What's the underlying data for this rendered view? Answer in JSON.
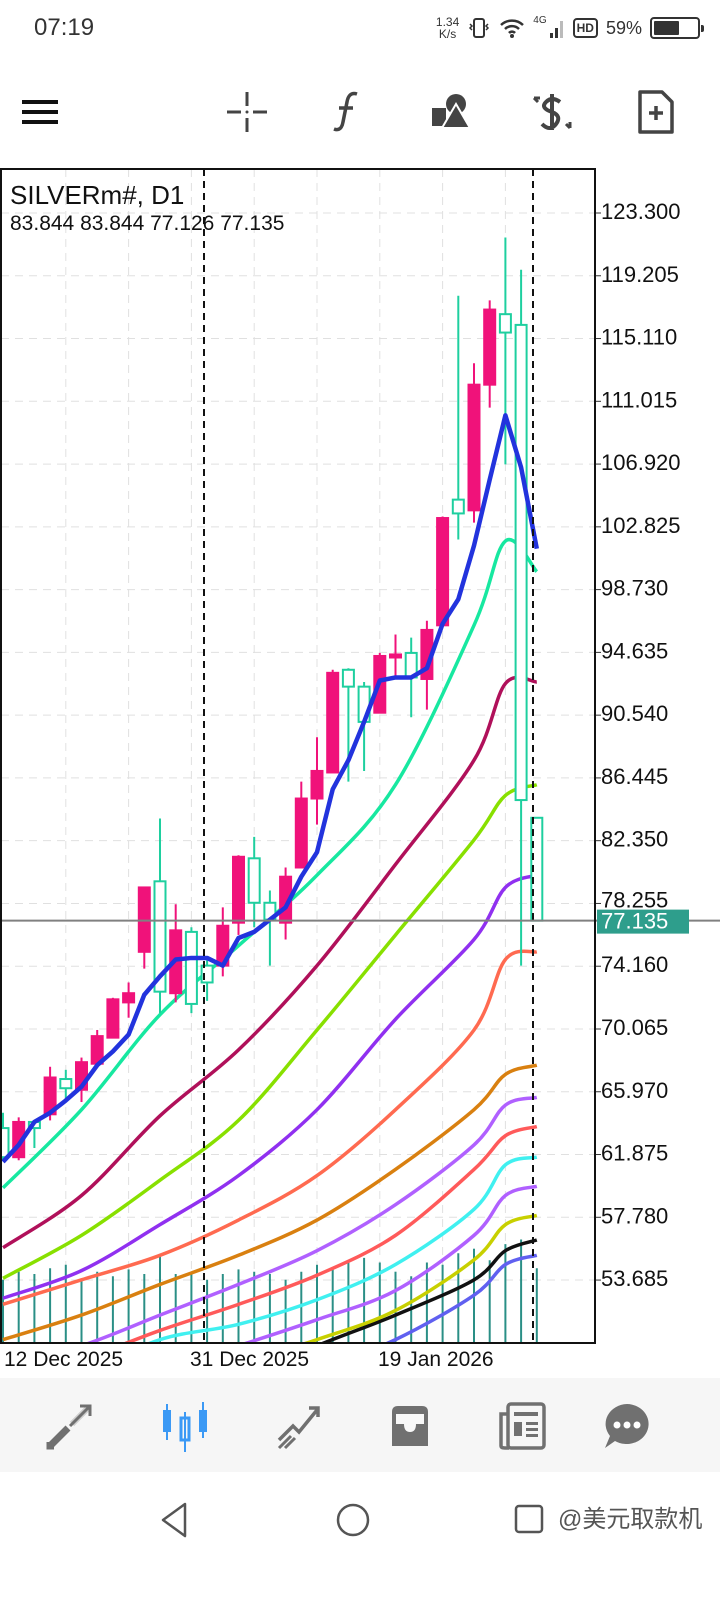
{
  "status_bar": {
    "time": "07:19",
    "speed_value": "1.34",
    "speed_unit": "K/s",
    "network": "4G",
    "hd": "HD",
    "battery": "59%",
    "battery_level": 0.59
  },
  "toolbar": {
    "icons": [
      "menu-icon",
      "crosshair-icon",
      "function-icon",
      "objects-icon",
      "trade-icon",
      "new-order-icon"
    ]
  },
  "chart": {
    "symbol": "SILVERm#, D1",
    "ohlc_text": "83.844 83.844 77.126 77.135",
    "current_price": "77.135",
    "colors": {
      "bull": "#f0127a",
      "bear": "#1ecf9f",
      "price_line": "#808080",
      "price_label_bg": "#2e9e8c",
      "volume": "#2a8f86",
      "grid": "#e0e0e0"
    }
  },
  "chart_data": {
    "type": "candlestick",
    "price_axis_ticks": [
      "123.300",
      "119.205",
      "115.110",
      "111.015",
      "106.920",
      "102.825",
      "98.730",
      "94.635",
      "90.540",
      "86.445",
      "82.350",
      "78.255",
      "74.160",
      "70.065",
      "65.970",
      "61.875",
      "57.780",
      "53.685"
    ],
    "ylim": [
      53.685,
      123.3
    ],
    "date_labels": [
      "12 Dec 2025",
      "31 Dec 2025",
      "19 Jan 2026"
    ],
    "candles_ohlc": [
      [
        63.6,
        64.6,
        61.5,
        61.7
      ],
      [
        61.7,
        64.3,
        61.5,
        64.0
      ],
      [
        64.0,
        64.1,
        62.3,
        63.6
      ],
      [
        64.5,
        67.6,
        64.1,
        66.9
      ],
      [
        66.8,
        67.4,
        65.4,
        66.2
      ],
      [
        66.1,
        68.2,
        65.3,
        67.9
      ],
      [
        67.8,
        70.0,
        67.8,
        69.6
      ],
      [
        69.5,
        72.1,
        69.5,
        72.0
      ],
      [
        71.8,
        73.1,
        70.8,
        72.4
      ],
      [
        75.1,
        79.3,
        74.0,
        79.3
      ],
      [
        79.7,
        83.8,
        71.1,
        72.5
      ],
      [
        72.4,
        78.2,
        71.8,
        76.5
      ],
      [
        76.4,
        76.7,
        71.1,
        71.7
      ],
      [
        74.2,
        74.7,
        71.9,
        73.1
      ],
      [
        74.2,
        78.0,
        73.5,
        76.8
      ],
      [
        77.0,
        81.4,
        76.2,
        81.3
      ],
      [
        81.2,
        82.6,
        76.7,
        78.3
      ],
      [
        78.3,
        79.1,
        74.2,
        77.2
      ],
      [
        77.0,
        80.6,
        75.9,
        80.0
      ],
      [
        80.6,
        86.2,
        80.6,
        85.1
      ],
      [
        85.1,
        89.1,
        83.4,
        86.9
      ],
      [
        86.8,
        93.5,
        86.8,
        93.3
      ],
      [
        93.5,
        93.6,
        86.2,
        92.4
      ],
      [
        92.4,
        92.7,
        86.9,
        90.1
      ],
      [
        90.7,
        94.6,
        90.7,
        94.4
      ],
      [
        94.3,
        95.8,
        93.1,
        94.5
      ],
      [
        94.6,
        95.6,
        90.4,
        93.0
      ],
      [
        92.9,
        96.7,
        90.9,
        96.1
      ],
      [
        96.4,
        103.5,
        96.4,
        103.4
      ],
      [
        104.6,
        117.9,
        102.0,
        103.7
      ],
      [
        103.9,
        113.5,
        103.1,
        112.1
      ],
      [
        112.1,
        117.6,
        110.6,
        117.0
      ],
      [
        116.7,
        121.7,
        106.9,
        115.5
      ],
      [
        116.0,
        119.6,
        74.2,
        85.0
      ],
      [
        83.844,
        83.844,
        77.126,
        77.135
      ]
    ],
    "volume_relative": [
      0.55,
      0.62,
      0.6,
      0.65,
      0.68,
      0.55,
      0.62,
      0.58,
      0.64,
      0.6,
      0.75,
      0.6,
      0.62,
      0.55,
      0.6,
      0.64,
      0.62,
      0.6,
      0.55,
      0.62,
      0.68,
      0.66,
      0.7,
      0.74,
      0.7,
      0.62,
      0.58,
      0.7,
      0.68,
      0.78,
      0.82,
      0.72,
      0.86,
      0.9,
      0.65
    ],
    "fast_ma": {
      "color": "#2233dd",
      "values": [
        61.4,
        62.5,
        64.0,
        64.6,
        65.4,
        66.3,
        67.7,
        68.6,
        69.7,
        72.3,
        73.5,
        74.6,
        74.7,
        74.7,
        74.2,
        76.0,
        76.4,
        77.2,
        78.0,
        80.0,
        81.6,
        85.7,
        87.6,
        90.1,
        92.8,
        93.0,
        93.0,
        93.6,
        96.5,
        98.1,
        101.6,
        105.9,
        110.1,
        106.7,
        101.4
      ]
    },
    "moving_averages": [
      {
        "color": "#17e8a0",
        "values": [
          59.7,
          64.8,
          71.0,
          75.5,
          80.1,
          86.0,
          96.4,
          101.9,
          99.9
        ]
      },
      {
        "color": "#b0105a",
        "values": [
          55.8,
          59.2,
          64.4,
          68.7,
          74.2,
          80.8,
          87.6,
          92.6,
          92.7
        ]
      },
      {
        "color": "#88e000",
        "values": [
          53.8,
          56.6,
          60.2,
          64.1,
          70.0,
          76.2,
          82.4,
          85.3,
          86.0
        ]
      },
      {
        "color": "#9030f0",
        "values": [
          52.5,
          54.3,
          57.3,
          60.5,
          64.8,
          70.7,
          75.9,
          79.3,
          80.1
        ]
      },
      {
        "color": "#ff6a50",
        "values": [
          52.1,
          53.7,
          55.3,
          57.6,
          60.5,
          64.8,
          70.0,
          74.6,
          75.1
        ]
      },
      {
        "color": "#d98010",
        "values": [
          49.8,
          51.4,
          53.4,
          55.3,
          57.6,
          60.9,
          64.8,
          67.1,
          67.7
        ]
      },
      {
        "color": "#b060ff",
        "values": [
          48.1,
          49.4,
          51.4,
          53.4,
          55.6,
          58.6,
          62.5,
          65.1,
          65.6
        ]
      },
      {
        "color": "#ff5a5a",
        "values": [
          47.2,
          48.5,
          50.4,
          52.1,
          54.0,
          56.6,
          60.9,
          63.1,
          63.7
        ]
      },
      {
        "color": "#40f0f0",
        "values": [
          45.9,
          47.5,
          49.8,
          50.8,
          52.4,
          54.7,
          58.3,
          61.2,
          61.7
        ]
      },
      {
        "color": "#b060ff",
        "values": [
          44.6,
          46.2,
          47.8,
          49.4,
          51.1,
          53.0,
          56.6,
          59.2,
          59.8
        ]
      },
      {
        "color": "#c8d000",
        "values": [
          43.3,
          44.9,
          46.5,
          48.2,
          49.8,
          51.7,
          55.0,
          57.3,
          57.9
        ]
      },
      {
        "color": "#111111",
        "values": [
          41.9,
          43.6,
          45.2,
          47.2,
          49.4,
          51.4,
          53.7,
          55.6,
          56.3
        ]
      },
      {
        "color": "#6060f0",
        "values": [
          40.6,
          42.3,
          43.9,
          45.9,
          47.8,
          49.8,
          52.7,
          54.7,
          55.3
        ]
      }
    ],
    "grid": true
  },
  "bottom_nav": {
    "items": [
      "quotes-icon",
      "chart-icon",
      "trade-icon",
      "history-icon",
      "news-icon",
      "messages-icon"
    ],
    "active": 1,
    "active_color": "#3b99f5",
    "inactive_color": "#707070"
  },
  "system_nav": {
    "watermark": "@美元取款机"
  }
}
